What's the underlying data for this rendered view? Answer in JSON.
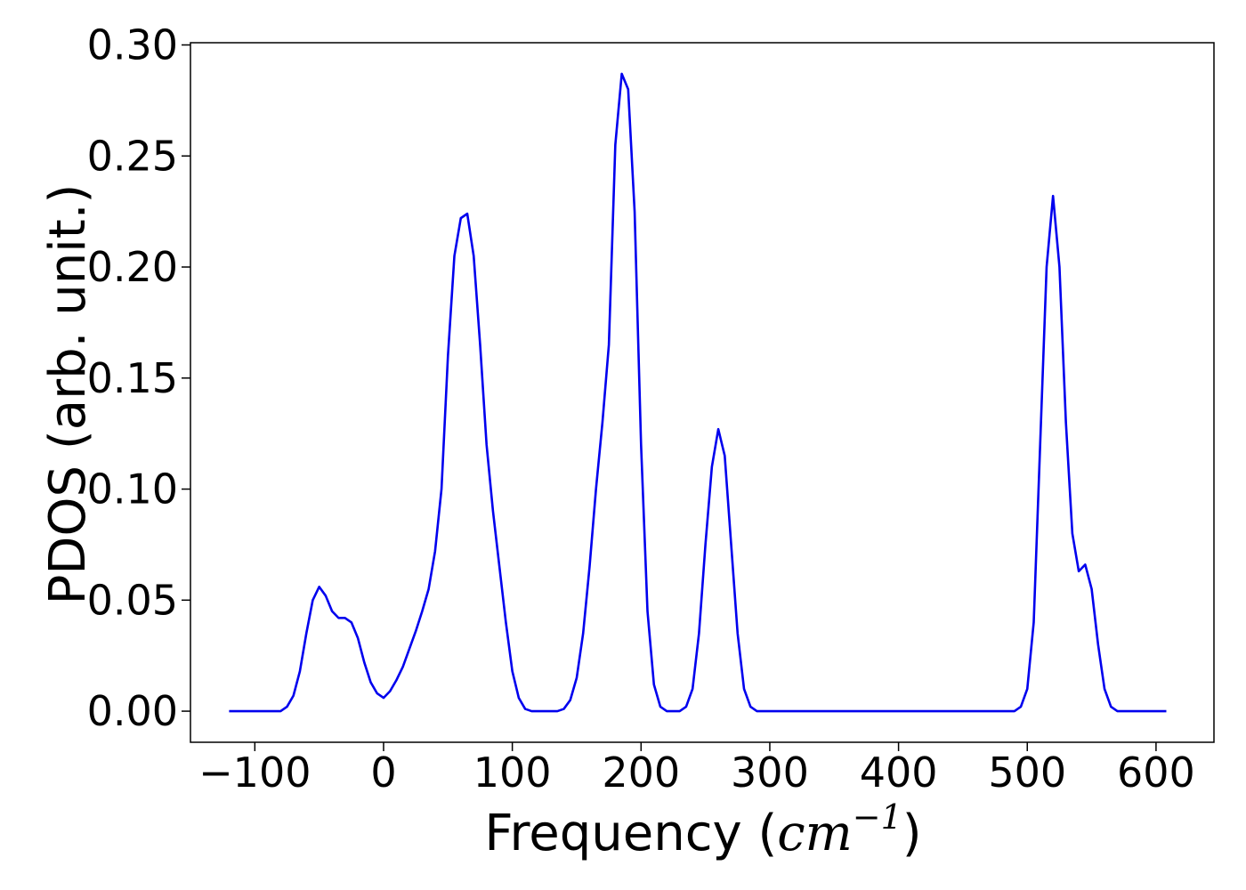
{
  "chart_data": {
    "type": "line",
    "title": "",
    "xlabel": {
      "text": "Frequency (",
      "unit": "cm",
      "exponent": "−1",
      "close": ")"
    },
    "ylabel": "PDOS (arb. unit.)",
    "xlim": [
      -150,
      645
    ],
    "ylim": [
      -0.014,
      0.301
    ],
    "xticks": [
      -100,
      0,
      100,
      200,
      300,
      400,
      500,
      600
    ],
    "xtick_labels": [
      "−100",
      "0",
      "100",
      "200",
      "300",
      "400",
      "500",
      "600"
    ],
    "yticks": [
      0.0,
      0.05,
      0.1,
      0.15,
      0.2,
      0.25,
      0.3
    ],
    "ytick_labels": [
      "0.00",
      "0.05",
      "0.10",
      "0.15",
      "0.20",
      "0.25",
      "0.30"
    ],
    "grid": false,
    "legend": "none",
    "series": [
      {
        "color": "#0000ee",
        "x": [
          -120,
          -80,
          -75,
          -70,
          -65,
          -60,
          -55,
          -50,
          -45,
          -40,
          -35,
          -30,
          -25,
          -20,
          -15,
          -10,
          -5,
          0,
          5,
          10,
          15,
          20,
          25,
          30,
          35,
          40,
          45,
          50,
          55,
          60,
          65,
          70,
          75,
          80,
          85,
          90,
          95,
          100,
          105,
          110,
          115,
          120,
          125,
          130,
          135,
          140,
          145,
          150,
          155,
          160,
          165,
          170,
          175,
          180,
          185,
          190,
          195,
          200,
          205,
          210,
          215,
          220,
          225,
          230,
          235,
          240,
          245,
          250,
          255,
          260,
          265,
          270,
          275,
          280,
          285,
          290,
          295,
          300,
          350,
          400,
          450,
          490,
          495,
          500,
          505,
          510,
          515,
          520,
          525,
          530,
          535,
          540,
          545,
          550,
          555,
          560,
          565,
          570,
          575,
          580,
          608
        ],
        "y": [
          0.0,
          0.0,
          0.002,
          0.007,
          0.018,
          0.035,
          0.05,
          0.056,
          0.052,
          0.045,
          0.042,
          0.042,
          0.04,
          0.033,
          0.022,
          0.013,
          0.008,
          0.006,
          0.009,
          0.014,
          0.02,
          0.028,
          0.036,
          0.045,
          0.055,
          0.072,
          0.1,
          0.16,
          0.205,
          0.222,
          0.224,
          0.205,
          0.165,
          0.12,
          0.09,
          0.065,
          0.04,
          0.018,
          0.006,
          0.001,
          0.0,
          0.0,
          0.0,
          0.0,
          0.0,
          0.001,
          0.005,
          0.015,
          0.035,
          0.065,
          0.1,
          0.13,
          0.165,
          0.255,
          0.287,
          0.28,
          0.225,
          0.12,
          0.045,
          0.012,
          0.002,
          0.0,
          0.0,
          0.0,
          0.002,
          0.01,
          0.035,
          0.075,
          0.11,
          0.127,
          0.115,
          0.075,
          0.035,
          0.01,
          0.002,
          0.0,
          0.0,
          0.0,
          0.0,
          0.0,
          0.0,
          0.0,
          0.002,
          0.01,
          0.04,
          0.12,
          0.2,
          0.232,
          0.2,
          0.13,
          0.08,
          0.063,
          0.066,
          0.055,
          0.03,
          0.01,
          0.002,
          0.0,
          0.0,
          0.0,
          0.0
        ]
      }
    ]
  }
}
